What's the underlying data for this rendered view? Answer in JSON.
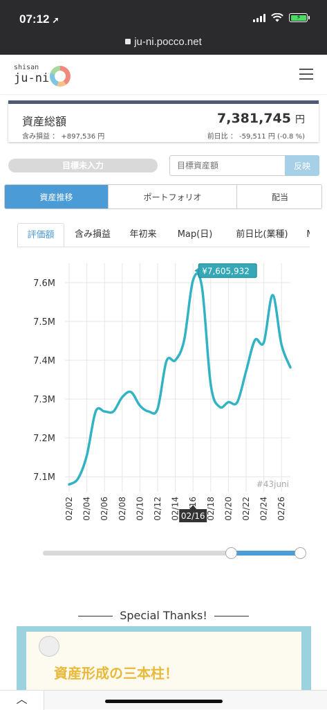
{
  "status_bar": {
    "time": "07:12",
    "url": "ju-ni.pocco.net"
  },
  "header": {
    "logo_top": "shisan",
    "logo_main": "ju-ni"
  },
  "assets": {
    "title": "資産総額",
    "total": "7,381,745",
    "total_unit": "円",
    "gain_text": "含み損益 ： +897,536 円",
    "diff_text": "前日比 ： -59,511 円 (-0.8 %)"
  },
  "goal": {
    "status_label": "目標未入力",
    "input_placeholder": "目標資産額",
    "apply_label": "反映"
  },
  "main_tabs": [
    {
      "label": "資産推移",
      "active": true
    },
    {
      "label": "ポートフォリオ",
      "active": false
    },
    {
      "label": "配当",
      "active": false
    }
  ],
  "sub_tabs": [
    {
      "label": "評価額",
      "active": true
    },
    {
      "label": "含み損益",
      "active": false
    },
    {
      "label": "年初来",
      "active": false
    },
    {
      "label": "Map(日)",
      "active": false
    },
    {
      "label": "前日比(業種)",
      "active": false
    },
    {
      "label": "M",
      "active": false
    }
  ],
  "chart_data": {
    "type": "line",
    "x": [
      "02/02",
      "02/03",
      "02/04",
      "02/05",
      "02/06",
      "02/07",
      "02/08",
      "02/09",
      "02/10",
      "02/11",
      "02/12",
      "02/13",
      "02/14",
      "02/15",
      "02/16",
      "02/17",
      "02/18",
      "02/19",
      "02/20",
      "02/21",
      "02/22",
      "02/23",
      "02/24",
      "02/25",
      "02/26",
      "02/27"
    ],
    "values": [
      7080000,
      7095000,
      7155000,
      7268000,
      7268000,
      7268000,
      7305000,
      7318000,
      7283000,
      7268000,
      7275000,
      7398000,
      7400000,
      7452000,
      7605932,
      7590000,
      7338000,
      7280000,
      7292000,
      7292000,
      7372000,
      7452000,
      7446000,
      7568000,
      7440000,
      7381745
    ],
    "x_tick_labels": [
      "02/02",
      "02/04",
      "02/06",
      "02/08",
      "02/10",
      "02/12",
      "02/14",
      "02/16",
      "02/18",
      "02/20",
      "02/22",
      "02/24",
      "02/26"
    ],
    "y_tick_labels": [
      "7.1M",
      "7.2M",
      "7.3M",
      "7.4M",
      "7.5M",
      "7.6M"
    ],
    "y_ticks": [
      7100000,
      7200000,
      7300000,
      7400000,
      7500000,
      7600000
    ],
    "ylim": [
      7070000,
      7650000
    ],
    "color": "#32b3c3",
    "tooltip_value": "¥7,605,932",
    "tooltip_x": "02/16",
    "tooltip_index": 14,
    "watermark": "#43juni",
    "grid": true
  },
  "range": {
    "start": 0.73,
    "end": 1.0
  },
  "thanks": {
    "title": "Special Thanks!",
    "banner_text": "資産形成の三本柱！"
  }
}
